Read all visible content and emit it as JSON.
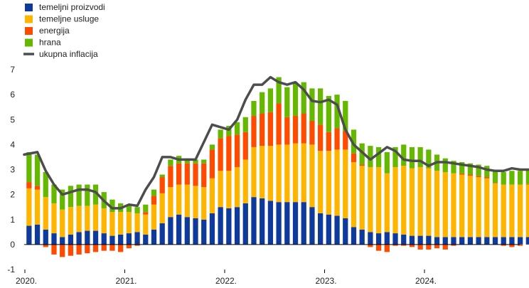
{
  "chart_data": {
    "type": "bar",
    "stacked": true,
    "legend_position": "top-left",
    "grid": false,
    "ylim": [
      -1,
      7
    ],
    "yticks": [
      -1,
      0,
      1,
      2,
      3,
      4,
      5,
      6,
      7
    ],
    "x_start": "2020-01",
    "x_tick_labels": [
      "2020.",
      "2021.",
      "2022.",
      "2023.",
      "2024."
    ],
    "series": [
      {
        "name": "temeljni proizvodi",
        "color": "#0d3a9b",
        "values": [
          0.75,
          0.8,
          0.6,
          0.45,
          0.3,
          0.4,
          0.5,
          0.55,
          0.55,
          0.45,
          0.35,
          0.4,
          0.45,
          0.5,
          0.4,
          0.6,
          0.85,
          1.1,
          1.2,
          1.1,
          1.05,
          1.0,
          1.25,
          1.5,
          1.45,
          1.5,
          1.65,
          1.9,
          1.85,
          1.75,
          1.7,
          1.7,
          1.7,
          1.7,
          1.5,
          1.25,
          1.2,
          1.15,
          1.05,
          0.7,
          0.6,
          0.5,
          0.45,
          0.5,
          0.45,
          0.4,
          0.35,
          0.35,
          0.35,
          0.3,
          0.3,
          0.3,
          0.3,
          0.3,
          0.3,
          0.3,
          0.3,
          0.3,
          0.3,
          0.3,
          0.3,
          0.35,
          0.35
        ]
      },
      {
        "name": "temeljne usluge",
        "color": "#ffb400",
        "values": [
          1.5,
          1.4,
          1.3,
          1.2,
          1.1,
          1.1,
          1.05,
          1.0,
          1.05,
          1.0,
          0.95,
          0.9,
          0.85,
          0.75,
          0.8,
          1.0,
          1.2,
          1.2,
          1.2,
          1.3,
          1.3,
          1.3,
          1.4,
          1.45,
          1.5,
          1.6,
          1.75,
          2.0,
          2.1,
          2.2,
          2.3,
          2.3,
          2.35,
          2.35,
          2.5,
          2.5,
          2.55,
          2.65,
          2.75,
          2.6,
          2.55,
          2.6,
          2.65,
          2.35,
          2.65,
          2.75,
          2.7,
          2.75,
          2.7,
          2.65,
          2.6,
          2.55,
          2.5,
          2.45,
          2.4,
          2.35,
          2.15,
          2.1,
          2.1,
          2.1,
          2.1,
          2.1,
          2.1
        ]
      },
      {
        "name": "energija",
        "color": "#ff4b00",
        "values": [
          0.25,
          0.15,
          -0.1,
          -0.4,
          -0.5,
          -0.45,
          -0.4,
          -0.35,
          -0.3,
          -0.25,
          -0.25,
          -0.3,
          -0.15,
          -0.05,
          0.1,
          0.35,
          0.65,
          0.85,
          0.85,
          0.85,
          0.9,
          0.95,
          1.15,
          1.3,
          1.4,
          1.3,
          1.1,
          1.25,
          1.3,
          1.35,
          1.65,
          1.1,
          1.1,
          1.2,
          0.95,
          1.05,
          0.75,
          0.85,
          0.75,
          0.35,
          0.05,
          -0.1,
          -0.25,
          -0.3,
          -0.05,
          -0.05,
          -0.1,
          -0.2,
          -0.2,
          -0.15,
          -0.2,
          -0.05,
          0.05,
          0.05,
          0.05,
          0.05,
          0.02,
          -0.05,
          -0.1,
          -0.05,
          0.02,
          0.02,
          0.02
        ]
      },
      {
        "name": "hrana",
        "color": "#65b800",
        "values": [
          1.2,
          1.25,
          1.0,
          0.75,
          0.8,
          0.85,
          0.85,
          0.85,
          0.8,
          0.65,
          0.5,
          0.35,
          0.25,
          0.25,
          0.3,
          0.25,
          0.1,
          0.25,
          0.3,
          0.2,
          0.15,
          0.15,
          0.2,
          0.35,
          0.4,
          0.5,
          0.6,
          0.6,
          0.85,
          0.95,
          1.05,
          1.2,
          1.3,
          1.25,
          1.3,
          1.45,
          1.45,
          1.35,
          1.2,
          0.95,
          0.85,
          0.85,
          0.8,
          0.85,
          0.8,
          0.85,
          0.85,
          0.8,
          0.75,
          0.65,
          0.55,
          0.5,
          0.45,
          0.45,
          0.45,
          0.45,
          0.5,
          0.5,
          0.55,
          0.55,
          0.55,
          0.6,
          0.55
        ]
      }
    ],
    "line": {
      "name": "ukupna inflacija",
      "color": "#4d4d4d",
      "values": [
        3.6,
        3.7,
        2.95,
        2.4,
        2.0,
        2.1,
        2.2,
        2.2,
        2.1,
        1.75,
        1.45,
        1.45,
        1.6,
        1.55,
        2.2,
        2.7,
        3.5,
        3.5,
        3.4,
        3.4,
        3.4,
        4.1,
        4.8,
        4.7,
        4.6,
        5.0,
        5.8,
        6.4,
        6.4,
        6.7,
        6.5,
        6.4,
        6.5,
        6.2,
        5.75,
        5.7,
        5.8,
        5.6,
        4.6,
        4.0,
        3.7,
        3.4,
        3.65,
        3.9,
        3.75,
        3.4,
        3.35,
        3.35,
        3.15,
        3.3,
        3.3,
        3.25,
        3.2,
        3.15,
        3.1,
        3.0,
        2.95,
        2.95,
        3.05,
        3.0,
        3.0,
        3.0,
        3.0
      ]
    }
  }
}
